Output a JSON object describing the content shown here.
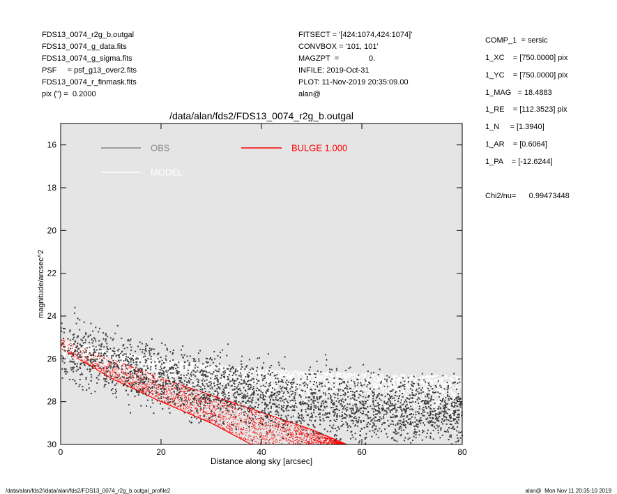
{
  "header_left": [
    "FDS13_0074_r2g_b.outgal",
    "FDS13_0074_g_data.fits",
    "FDS13_0074_g_sigma.fits",
    "PSF     = psf_g13_over2.fits",
    "FDS13_0074_r_finmask.fits",
    "pix (\") =  0.2000"
  ],
  "header_mid": [
    "FITSECT = '[424:1074,424:1074]'",
    "CONVBOX = '101, 101'",
    "MAGZPT  =              0.",
    "INFILE: 2019-Oct-31",
    "PLOT: 11-Nov-2019 20:35:09.00",
    "alan@"
  ],
  "params": [
    "COMP_1  = sersic",
    "1_XC    = [750.0000] pix",
    "1_YC    = [750.0000] pix",
    "1_MAG   = 18.4883",
    "1_RE    = [112.3523] pix",
    "1_N     = [1.3940]",
    "1_AR    = [0.6064]",
    "1_PA    = [-12.6244]"
  ],
  "chi2": "Chi2/nu=      0.99473448",
  "footer_left": "/data/alan/fds2//data/alan/fds2/FDS13_0074_r2g_b.outgal_profile2",
  "footer_right": "alan@  Mon Nov 11 20:35:10 2019",
  "colors": {
    "plot_bg": "#e5e5e5",
    "obs": "#3a3a3a",
    "obs_legend": "#8a8a8a",
    "model": "#ffffff",
    "bulge": "#ff0000"
  },
  "chart_data": {
    "type": "scatter",
    "title": "/data/alan/fds2/FDS13_0074_r2g_b.outgal",
    "xlabel": "Distance along sky [arcsec]",
    "ylabel": "magnitude/arcsec^2",
    "xlim": [
      0,
      80
    ],
    "ylim": [
      30,
      15
    ],
    "y_inverted": true,
    "xticks": [
      0,
      20,
      40,
      60,
      80
    ],
    "yticks": [
      16,
      18,
      20,
      22,
      24,
      26,
      28,
      30
    ],
    "grid": false,
    "legend": [
      {
        "label": "OBS",
        "color": "#8a8a8a",
        "position": "top-left"
      },
      {
        "label": "MODEL",
        "color": "#ffffff",
        "position": "top-left"
      },
      {
        "label": "BULGE  1.000",
        "color": "#ff0000",
        "position": "top-center"
      }
    ],
    "series": [
      {
        "name": "OBS",
        "kind": "scatter",
        "trend": [
          [
            0,
            25.5
          ],
          [
            10,
            26.2
          ],
          [
            20,
            26.9
          ],
          [
            30,
            27.4
          ],
          [
            40,
            27.8
          ],
          [
            50,
            28.1
          ],
          [
            60,
            28.3
          ],
          [
            80,
            28.5
          ]
        ],
        "scatter_mag": 1.4
      },
      {
        "name": "MODEL",
        "kind": "scatter",
        "trend": [
          [
            0,
            25.1
          ],
          [
            10,
            25.6
          ],
          [
            20,
            26.0
          ],
          [
            30,
            26.3
          ],
          [
            40,
            26.5
          ],
          [
            50,
            26.6
          ],
          [
            60,
            26.7
          ],
          [
            80,
            26.8
          ]
        ],
        "scatter_mag": 0.6
      },
      {
        "name": "BULGE  1.000",
        "kind": "band",
        "upper": [
          [
            0,
            25.1
          ],
          [
            10,
            26.0
          ],
          [
            20,
            26.9
          ],
          [
            30,
            27.7
          ],
          [
            40,
            28.5
          ],
          [
            50,
            29.3
          ],
          [
            57,
            30.0
          ]
        ],
        "lower": [
          [
            0,
            25.5
          ],
          [
            10,
            26.9
          ],
          [
            20,
            28.0
          ],
          [
            30,
            29.0
          ],
          [
            38,
            30.0
          ]
        ]
      }
    ]
  }
}
